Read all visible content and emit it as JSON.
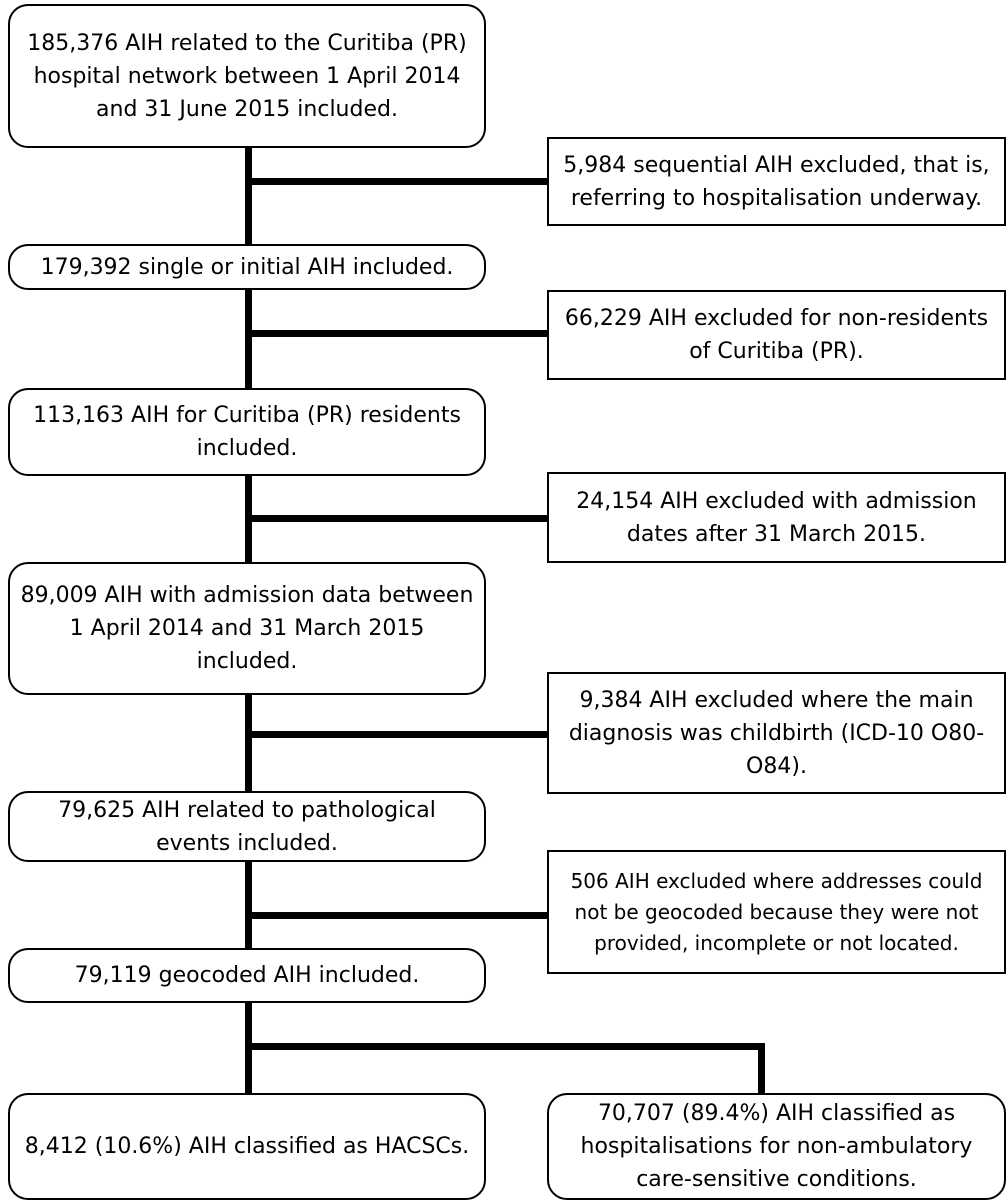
{
  "flow": {
    "include": [
      "185,376 AIH related to the Curitiba (PR) hospital network between 1 April 2014 and 31 June 2015 included.",
      "179,392 single or initial AIH included.",
      "113,163 AIH for Curitiba (PR) residents included.",
      "89,009 AIH with admission data between 1 April 2014 and 31 March 2015 included.",
      "79,625 AIH related to pathological events included.",
      "79,119 geocoded AIH included."
    ],
    "exclude": [
      "5,984 sequential AIH excluded, that is, referring to hospitalisation underway.",
      "66,229 AIH excluded for non-residents of Curitiba (PR).",
      "24,154 AIH excluded with admission dates after 31 March 2015.",
      "9,384 AIH excluded where the main diagnosis was childbirth (ICD-10 O80-O84).",
      "506 AIH excluded where addresses could not be geocoded because they were not provided, incomplete or not located."
    ],
    "outcomes": [
      "8,412 (10.6%) AIH classified as HACSCs.",
      "70,707 (89.4%) AIH classified as hospitalisations for non-ambulatory care-sensitive conditions."
    ]
  }
}
